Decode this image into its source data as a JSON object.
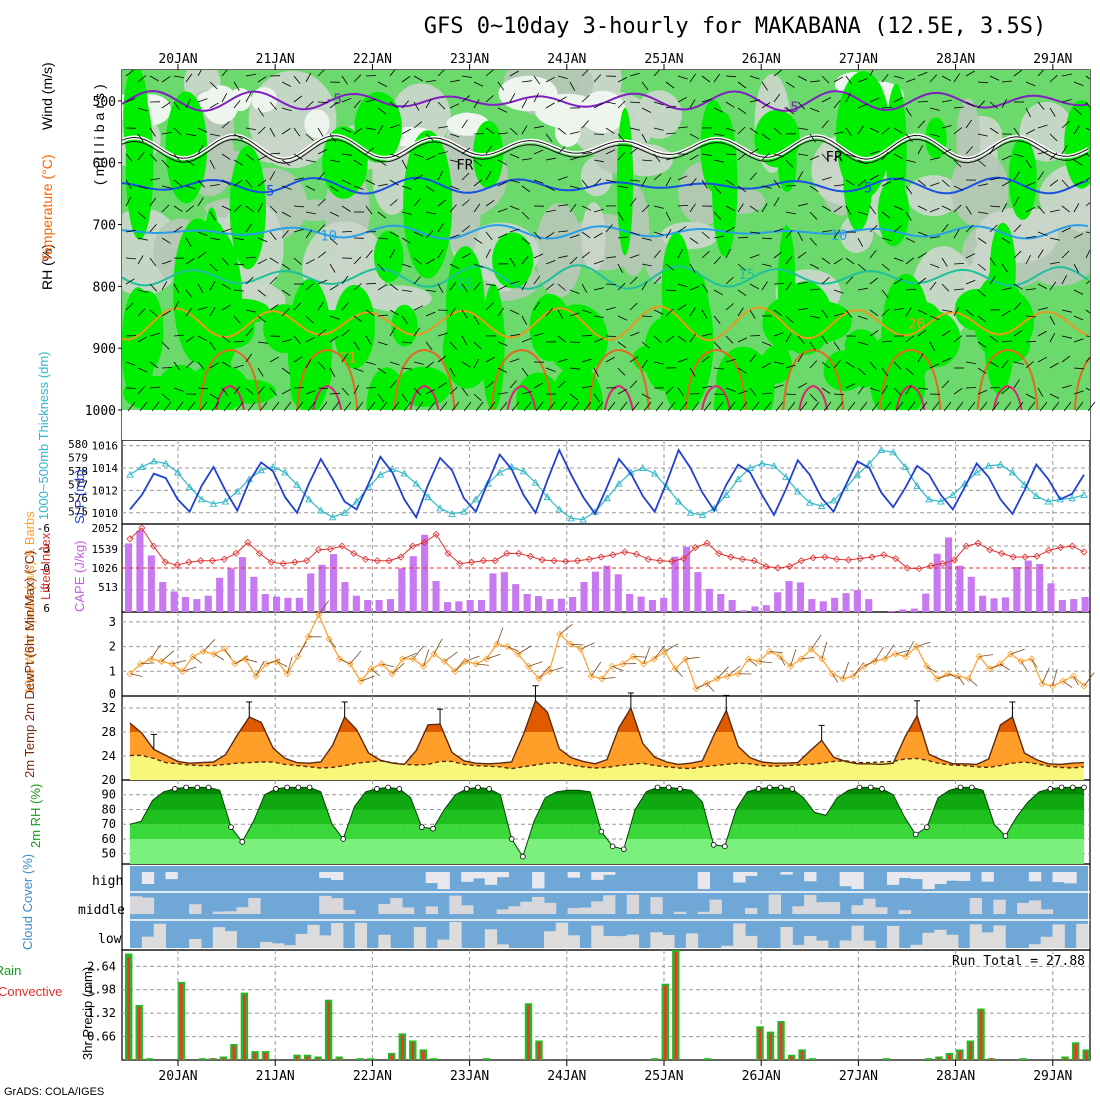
{
  "title": "GFS 0~10day 3-hourly for MAKABANA (12.5E, 3.5S)",
  "footer": "GrADS: COLA/IGES",
  "dates": [
    "20JAN",
    "21JAN",
    "22JAN",
    "23JAN",
    "24JAN",
    "25JAN",
    "26JAN",
    "27JAN",
    "28JAN",
    "29JAN"
  ],
  "colors": {
    "rh_green": "#00ee00",
    "rh_mid": "#6bd96b",
    "rh_light": "#b5c8b5",
    "cloud_blue": "#6fa8d6",
    "cape_purple": "#c878f0",
    "temp_orange": "#ff9f2a",
    "temp_dark": "#e05a00",
    "dew_yellow": "#f7f77a",
    "rh2m_green": "#00b000",
    "slp_blue": "#2040d0",
    "thick_cyan": "#30b8c8",
    "precip_green": "#22bb22",
    "precip_red": "#ee3333"
  },
  "chart_data": [
    {
      "type": "heatmap",
      "name": "cross-section",
      "legend_rh": "RH (%)",
      "legend_temp": "Temperature (°C)",
      "legend_wind": "Wind (m/s)",
      "ylabel": "(millibars)",
      "y_ticks": [
        "500",
        "600",
        "700",
        "800",
        "900",
        "1000"
      ],
      "ylim": [
        450,
        1000
      ],
      "isotherm_labels": [
        {
          "text": "-5",
          "day": 1.6,
          "p": 497
        },
        {
          "text": "-5",
          "day": 6.3,
          "p": 510
        },
        {
          "text": "FR",
          "day": 2.95,
          "p": 603
        },
        {
          "text": "FR",
          "day": 6.75,
          "p": 590
        },
        {
          "text": "5",
          "day": 0.95,
          "p": 645
        },
        {
          "text": "5",
          "day": 7.1,
          "p": 640
        },
        {
          "text": "10",
          "day": 1.55,
          "p": 718
        },
        {
          "text": "10",
          "day": 6.8,
          "p": 717
        },
        {
          "text": "15",
          "day": 2.95,
          "p": 795
        },
        {
          "text": "15",
          "day": 5.85,
          "p": 780
        },
        {
          "text": "20",
          "day": 7.6,
          "p": 860
        },
        {
          "text": "21",
          "day": 1.75,
          "p": 915
        }
      ]
    },
    {
      "type": "line",
      "name": "slp-thickness",
      "ylabel_left": "1000~500mb Thickness (dm)",
      "ylabel_right": "SLP (mb)",
      "thickness_ticks": [
        "580",
        "579",
        "578",
        "577",
        "576",
        "575"
      ],
      "slp_ticks": [
        "1016",
        "1014",
        "1012",
        "1010"
      ],
      "slp_ylim": [
        1009,
        1016.5
      ],
      "series": [
        {
          "name": "SLP",
          "values": [
            1010.3,
            1011.6,
            1013.5,
            1013.1,
            1011.2,
            1010.1,
            1012.4,
            1014.1,
            1012.0,
            1010.2,
            1012.8,
            1014.5,
            1013.7,
            1011.4,
            1010.0,
            1012.6,
            1014.8,
            1013.0,
            1011.0,
            1010.3,
            1012.6,
            1015.0,
            1013.6,
            1011.2,
            1009.6,
            1012.5,
            1014.9,
            1013.8,
            1011.3,
            1010.1,
            1012.7,
            1015.2,
            1013.9,
            1011.6,
            1010.0,
            1012.9,
            1015.6,
            1013.4,
            1011.4,
            1009.9,
            1012.3,
            1014.8,
            1013.5,
            1011.5,
            1010.1,
            1012.7,
            1015.6,
            1014.0,
            1011.8,
            1010.2,
            1012.5,
            1014.3,
            1013.6,
            1011.6,
            1009.8,
            1012.1,
            1014.7,
            1013.4,
            1011.3,
            1010.1,
            1012.4,
            1014.6,
            1014.0,
            1011.8,
            1010.5,
            1012.2,
            1014.2,
            1013.4,
            1011.6,
            1010.3,
            1012.3,
            1014.4,
            1013.2,
            1011.2,
            1009.9,
            1012.0,
            1014.3,
            1013.0,
            1011.2,
            1011.7,
            1013.4
          ]
        },
        {
          "name": "Thickness",
          "values": [
            1013.4,
            1014.1,
            1014.6,
            1014.4,
            1013.6,
            1012.3,
            1011.2,
            1010.8,
            1011.0,
            1011.9,
            1013.0,
            1013.8,
            1014.1,
            1013.6,
            1012.5,
            1011.2,
            1010.2,
            1009.6,
            1010.0,
            1011.0,
            1012.3,
            1013.4,
            1013.9,
            1013.5,
            1012.6,
            1011.4,
            1010.4,
            1009.9,
            1010.1,
            1011.2,
            1012.6,
            1013.6,
            1014.1,
            1013.7,
            1012.7,
            1011.4,
            1010.3,
            1009.5,
            1009.4,
            1010.1,
            1011.3,
            1012.6,
            1013.6,
            1014.0,
            1013.5,
            1012.3,
            1011.0,
            1010.0,
            1009.8,
            1010.4,
            1011.6,
            1013.0,
            1014.0,
            1014.4,
            1014.2,
            1013.2,
            1011.9,
            1010.9,
            1010.6,
            1011.1,
            1012.2,
            1013.4,
            1014.4,
            1015.6,
            1015.4,
            1014.1,
            1012.4,
            1011.2,
            1011.0,
            1011.6,
            1012.6,
            1013.6,
            1014.2,
            1014.3,
            1013.6,
            1012.5,
            1011.5,
            1011.0,
            1011.2,
            1011.3,
            1011.6
          ]
        }
      ]
    },
    {
      "type": "bar",
      "name": "cape-lifted-index",
      "ylabel_left": "Lifted Index",
      "ylabel_right": "CAPE (J/kg)",
      "li_ticks": [
        "-6",
        "-3",
        "0",
        "3",
        "6"
      ],
      "cape_ticks": [
        "2052",
        "1539",
        "1026",
        "513"
      ],
      "cape_ylim": [
        0,
        2052
      ],
      "series": [
        {
          "name": "CAPE",
          "values": [
            1600,
            1900,
            1320,
            700,
            480,
            350,
            300,
            380,
            800,
            1020,
            1280,
            820,
            420,
            360,
            330,
            330,
            900,
            1100,
            1350,
            700,
            380,
            280,
            280,
            300,
            1020,
            1300,
            1800,
            720,
            230,
            250,
            280,
            280,
            900,
            930,
            650,
            420,
            370,
            300,
            310,
            350,
            700,
            940,
            1080,
            880,
            420,
            360,
            280,
            330,
            1290,
            1520,
            930,
            540,
            420,
            280,
            40,
            130,
            160,
            460,
            720,
            690,
            300,
            250,
            330,
            440,
            510,
            300,
            0,
            20,
            60,
            80,
            430,
            1360,
            1740,
            1080,
            820,
            380,
            320,
            340,
            1050,
            1200,
            1120,
            670,
            280,
            300,
            350
          ]
        },
        {
          "name": "Lifted Index",
          "values": [
            -4,
            -5.5,
            -3,
            -0.8,
            -0.4,
            -0.8,
            -1,
            -1,
            -1.2,
            -2,
            -3.5,
            -2,
            -0.8,
            -0.6,
            -0.8,
            -1,
            -2.5,
            -2.6,
            -3,
            -2,
            -1.2,
            -1,
            -1,
            -1.5,
            -3,
            -3.5,
            -4.6,
            -2,
            -0.6,
            -0.8,
            -1,
            -1,
            -2,
            -2,
            -1.6,
            -1.1,
            -1,
            -0.9,
            -1,
            -1.2,
            -1.5,
            -1.8,
            -2.2,
            -1.9,
            -1.2,
            -1,
            -0.9,
            -1.3,
            -2.8,
            -3.4,
            -2,
            -1.5,
            -1.2,
            -1,
            -0.2,
            0,
            -0.2,
            -1,
            -1.4,
            -1.5,
            -1.2,
            -1.1,
            -1.3,
            -1.5,
            -1.8,
            -1.3,
            0,
            0.1,
            -0.3,
            -0.6,
            -1.1,
            -3,
            -3.4,
            -2.5,
            -2,
            -1.5,
            -1.5,
            -1.6,
            -2.4,
            -2.8,
            -3,
            -2.2
          ]
        }
      ]
    },
    {
      "type": "line",
      "name": "wind-10m",
      "ylabel": "10m Wind Speed (m/s) & Barbs",
      "y_ticks": [
        "1",
        "2",
        "3"
      ],
      "ylim": [
        0,
        3.4
      ],
      "values": [
        0.9,
        1.3,
        1.5,
        1.4,
        1.3,
        1.0,
        1.6,
        1.8,
        1.7,
        1.9,
        1.3,
        1.5,
        0.8,
        1.3,
        1.4,
        0.9,
        1.6,
        2.4,
        3.3,
        2.3,
        1.5,
        1.3,
        0.6,
        1.1,
        1.3,
        0.9,
        1.5,
        1.5,
        1.2,
        1.7,
        1.4,
        1.0,
        1.4,
        1.3,
        1.5,
        2.1,
        2.0,
        1.7,
        1.2,
        0.7,
        1.0,
        2.5,
        2.1,
        1.9,
        0.8,
        0.7,
        1.2,
        1.3,
        1.6,
        1.3,
        1.5,
        1.8,
        1.1,
        1.5,
        0.3,
        0.5,
        0.7,
        0.8,
        0.9,
        1.5,
        1.4,
        1.8,
        1.6,
        1.2,
        1.5,
        1.9,
        1.5,
        0.9,
        0.7,
        0.8,
        1.2,
        1.4,
        1.5,
        1.7,
        1.6,
        2.0,
        1.2,
        0.7,
        0.9,
        0.8,
        0.7,
        1.6,
        1.1,
        1.3,
        1.7,
        1.4,
        1.5,
        0.5,
        0.4,
        0.6,
        0.8,
        0.4
      ]
    },
    {
      "type": "area",
      "name": "temperature-2m",
      "ylabel": "2m Temp 2m DewPt (6hr Min/Max) (°C)",
      "y_ticks": [
        "20",
        "24",
        "28",
        "32"
      ],
      "ylim": [
        20,
        34
      ],
      "series": [
        {
          "name": "2m Temp",
          "values": [
            29.5,
            27.8,
            25.1,
            24.1,
            23.1,
            22.8,
            22.9,
            23.0,
            24.2,
            27.5,
            30.5,
            29.6,
            25.3,
            23.6,
            22.9,
            22.8,
            23.0,
            25.8,
            30.5,
            28.4,
            24.5,
            23.3,
            22.8,
            22.6,
            24.9,
            29.2,
            29.3,
            24.6,
            23.2,
            22.8,
            22.7,
            22.8,
            23.0,
            27.6,
            33.2,
            31.3,
            25.2,
            23.7,
            23.1,
            22.7,
            23.4,
            28.7,
            32.0,
            26.1,
            23.8,
            23.0,
            22.6,
            22.8,
            23.2,
            27.6,
            31.6,
            25.6,
            23.7,
            23.0,
            22.8,
            22.8,
            22.9,
            24.8,
            26.6,
            23.8,
            23.1,
            22.7,
            22.7,
            22.6,
            22.8,
            27.2,
            30.7,
            24.3,
            23.4,
            22.7,
            22.7,
            22.6,
            23.5,
            29.2,
            30.5,
            24.5,
            23.4,
            22.7,
            22.6,
            22.8,
            22.9
          ]
        },
        {
          "name": "2m DewPt",
          "values": [
            24.1,
            24.1,
            23.6,
            22.9,
            22.7,
            22.5,
            22.4,
            22.4,
            22.6,
            22.8,
            22.9,
            23.0,
            23.0,
            22.6,
            22.4,
            22.2,
            22.0,
            22.1,
            22.4,
            22.8,
            23.0,
            23.2,
            22.9,
            22.6,
            22.5,
            22.6,
            23.1,
            23.1,
            22.6,
            22.4,
            22.3,
            22.2,
            21.9,
            22.2,
            22.5,
            22.8,
            22.9,
            22.5,
            22.2,
            22.0,
            22.1,
            22.4,
            22.6,
            22.8,
            22.4,
            22.2,
            22.0,
            21.9,
            22.2,
            22.4,
            22.6,
            22.8,
            22.7,
            22.4,
            22.3,
            22.4,
            22.5,
            22.6,
            22.8,
            23.1,
            23.2,
            22.9,
            22.9,
            23.0,
            23.1,
            23.5,
            23.6,
            23.2,
            22.7,
            22.5,
            22.4,
            22.2,
            22.1,
            22.4,
            22.8,
            23.0,
            22.7,
            22.3,
            22.1,
            22.0,
            22.2
          ]
        }
      ]
    },
    {
      "type": "area",
      "name": "rh-2m",
      "ylabel": "2m RH (%)",
      "y_ticks": [
        "50",
        "60",
        "70",
        "80",
        "90"
      ],
      "ylim": [
        43,
        100
      ],
      "values": [
        70,
        72,
        86,
        92,
        94,
        95,
        95,
        95,
        93,
        68,
        58,
        72,
        90,
        94,
        95,
        95,
        95,
        92,
        70,
        60,
        82,
        92,
        94,
        95,
        94,
        88,
        68,
        67,
        80,
        90,
        94,
        95,
        94,
        90,
        60,
        48,
        72,
        88,
        92,
        93,
        93,
        92,
        65,
        55,
        53,
        80,
        92,
        95,
        95,
        94,
        93,
        85,
        56,
        55,
        80,
        92,
        94,
        95,
        95,
        94,
        88,
        78,
        76,
        88,
        93,
        95,
        95,
        94,
        90,
        75,
        63,
        68,
        88,
        93,
        95,
        95,
        93,
        70,
        62,
        75,
        85,
        92,
        94,
        95,
        95,
        95
      ]
    },
    {
      "type": "bar",
      "name": "cloud-cover",
      "ylabel": "Cloud Cover (%)",
      "levels": [
        "high",
        "middle",
        "low"
      ]
    },
    {
      "type": "bar",
      "name": "precip-3hr",
      "ylabel": "3hr Precip (mm)",
      "legend": "Total / Rain Convective",
      "run_total": "Run Total = 27.88",
      "y_ticks": [
        "0.66",
        "1.32",
        "1.98",
        "2.64"
      ],
      "ylim": [
        0,
        3.1
      ],
      "series": [
        {
          "name": "Total",
          "values": [
            3.0,
            1.55,
            0.05,
            0,
            0,
            2.2,
            0,
            0.05,
            0.05,
            0.1,
            0.45,
            1.9,
            0.25,
            0.25,
            0,
            0,
            0.15,
            0.15,
            0.1,
            1.7,
            0.1,
            0,
            0.05,
            0.05,
            0,
            0.2,
            0.75,
            0.55,
            0.3,
            0.05,
            0,
            0,
            0,
            0,
            0.05,
            0,
            0,
            0,
            1.6,
            0.55,
            0,
            0,
            0,
            0,
            0,
            0,
            0,
            0,
            0,
            0,
            0.05,
            2.15,
            3.1,
            0,
            0,
            0.05,
            0,
            0,
            0,
            0,
            0.95,
            0.8,
            1.1,
            0.15,
            0.3,
            0.05,
            0,
            0,
            0,
            0,
            0,
            0,
            0.05,
            0,
            0,
            0,
            0.05,
            0.1,
            0.2,
            0.3,
            0.55,
            1.45,
            0.05,
            0,
            0,
            0.05,
            0,
            0,
            0,
            0.1,
            0.5,
            0.3
          ]
        },
        {
          "name": "Convective",
          "values": [
            2.9,
            1.5,
            0,
            0,
            0,
            2.15,
            0,
            0,
            0.05,
            0.05,
            0.4,
            1.85,
            0.2,
            0.2,
            0,
            0,
            0.1,
            0.1,
            0.05,
            1.65,
            0.05,
            0,
            0,
            0,
            0,
            0.15,
            0.7,
            0.5,
            0.25,
            0,
            0,
            0,
            0,
            0,
            0,
            0,
            0,
            0,
            1.55,
            0.5,
            0,
            0,
            0,
            0,
            0,
            0,
            0,
            0,
            0,
            0,
            0,
            2.1,
            3.05,
            0,
            0,
            0,
            0,
            0,
            0,
            0,
            0.9,
            0.75,
            1.05,
            0.1,
            0.25,
            0,
            0,
            0,
            0,
            0.05,
            0,
            0,
            0,
            0,
            0,
            0,
            0,
            0.05,
            0.15,
            0.25,
            0.5,
            1.4,
            0.05,
            0,
            0,
            0,
            0,
            0,
            0,
            0.05,
            0.45,
            0.25
          ]
        }
      ]
    }
  ]
}
